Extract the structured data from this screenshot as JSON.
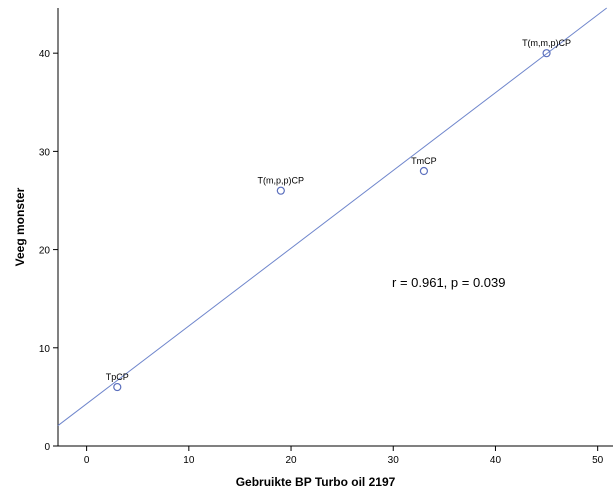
{
  "chart_data": {
    "type": "scatter",
    "xlabel": "Gebruikte BP Turbo oil 2197",
    "ylabel": "Veeg monster",
    "xlim": [
      -2.8,
      51.5
    ],
    "ylim": [
      0,
      44.6
    ],
    "xticks": [
      0,
      10,
      20,
      30,
      40,
      50
    ],
    "yticks": [
      0,
      10,
      20,
      30,
      40
    ],
    "xtick_labels": [
      "0",
      "10",
      "20",
      "30",
      "40",
      "50"
    ],
    "ytick_labels": [
      "0",
      "10",
      "20",
      "30",
      "40"
    ],
    "points": [
      {
        "label": "TpCP",
        "x": 3,
        "y": 6
      },
      {
        "label": "T(m,p,p)CP",
        "x": 19,
        "y": 26
      },
      {
        "label": "TmCP",
        "x": 33,
        "y": 28
      },
      {
        "label": "T(m,m,p)CP",
        "x": 45,
        "y": 40
      }
    ],
    "fit_line": {
      "intercept": 4.3,
      "slope": 0.792
    },
    "annotation": "r = 0.961, p = 0.039",
    "grid": false,
    "colors": {
      "marker": "#5b6fbd",
      "line": "#6f86cc",
      "axis": "#000000"
    }
  }
}
